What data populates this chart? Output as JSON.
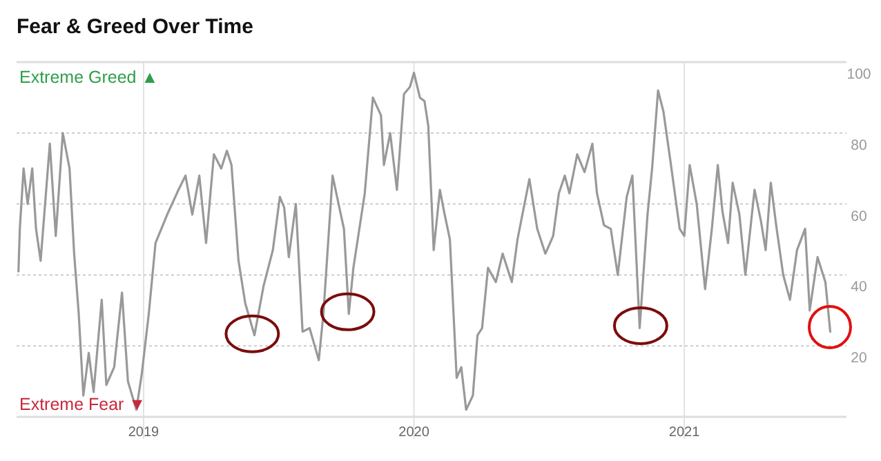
{
  "chart_data": {
    "type": "line",
    "title": "Fear & Greed Over Time",
    "annotations": [
      "Extreme Greed ▲",
      "Extreme Fear ▼"
    ],
    "x": [
      2018.537,
      2018.542,
      2018.556,
      2018.571,
      2018.588,
      2018.602,
      2018.619,
      2018.653,
      2018.675,
      2018.701,
      2018.726,
      2018.743,
      2018.76,
      2018.777,
      2018.797,
      2018.815,
      2018.845,
      2018.862,
      2018.891,
      2018.92,
      2018.942,
      2018.973,
      2018.993,
      2019.019,
      2019.044,
      2019.087,
      2019.129,
      2019.155,
      2019.18,
      2019.206,
      2019.231,
      2019.26,
      2019.287,
      2019.308,
      2019.325,
      2019.351,
      2019.376,
      2019.41,
      2019.444,
      2019.478,
      2019.504,
      2019.52,
      2019.537,
      2019.563,
      2019.588,
      2019.614,
      2019.648,
      2019.665,
      2019.699,
      2019.724,
      2019.741,
      2019.759,
      2019.776,
      2019.818,
      2019.848,
      2019.878,
      2019.889,
      2019.912,
      2019.937,
      2019.963,
      2019.985,
      2020.0,
      2020.022,
      2020.039,
      2020.053,
      2020.073,
      2020.096,
      2020.111,
      2020.133,
      2020.158,
      2020.175,
      2020.193,
      2020.218,
      2020.235,
      2020.252,
      2020.274,
      2020.303,
      2020.328,
      2020.362,
      2020.383,
      2020.427,
      2020.456,
      2020.486,
      2020.515,
      2020.536,
      2020.558,
      2020.575,
      2020.604,
      2020.631,
      2020.66,
      2020.677,
      2020.703,
      2020.728,
      2020.754,
      2020.787,
      2020.808,
      2020.835,
      2020.864,
      2020.881,
      2020.903,
      2020.923,
      2020.949,
      2020.983,
      2021.0,
      2021.02,
      2021.046,
      2021.077,
      2021.102,
      2021.124,
      2021.141,
      2021.162,
      2021.179,
      2021.204,
      2021.226,
      2021.26,
      2021.284,
      2021.301,
      2021.32,
      2021.34,
      2021.366,
      2021.391,
      2021.417,
      2021.447,
      2021.464,
      2021.493,
      2021.522,
      2021.54
    ],
    "series": [
      {
        "color": "#999999",
        "values": [
          41,
          53,
          70,
          60,
          70,
          53,
          44,
          77,
          51,
          80,
          70,
          46,
          29,
          6,
          18,
          7,
          33,
          9,
          14,
          35,
          10,
          2,
          12,
          29,
          49,
          57,
          64,
          68,
          57,
          68,
          49,
          74,
          70,
          75,
          71,
          44,
          32,
          23,
          37,
          47,
          62,
          59,
          45,
          60,
          24,
          25,
          16,
          29,
          68,
          59,
          53,
          29,
          42,
          63,
          90,
          85,
          71,
          80,
          64,
          91,
          93,
          97,
          90,
          89,
          82,
          47,
          64,
          58,
          50,
          11,
          14,
          2,
          6,
          23,
          25,
          42,
          38,
          46,
          38,
          50,
          67,
          53,
          46,
          51,
          63,
          68,
          63,
          74,
          69,
          77,
          63,
          54,
          53,
          40,
          62,
          68,
          25,
          57,
          70,
          92,
          86,
          72,
          53,
          51,
          71,
          60,
          36,
          53,
          71,
          58,
          49,
          66,
          57,
          40,
          64,
          55,
          47,
          66,
          54,
          40,
          33,
          47,
          53,
          30,
          45,
          38,
          24
        ]
      }
    ],
    "xlim": [
      2018.53,
      2021.6
    ],
    "xticks": [
      2019,
      2020,
      2021
    ],
    "ylim": [
      0,
      100
    ],
    "yticks": [
      20,
      40,
      60,
      80,
      100
    ],
    "grid": true,
    "line_style": "solid",
    "marker": "none"
  }
}
